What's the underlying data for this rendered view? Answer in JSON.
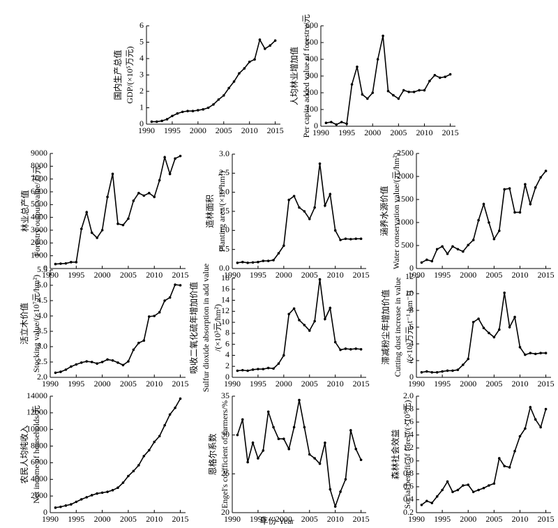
{
  "chart_data": [
    {
      "type": "line",
      "ylabel": [
        "国内生产总值",
        "GDP/(×10⁵万元)"
      ],
      "color": "#000000",
      "x": [
        1991,
        1992,
        1993,
        1994,
        1995,
        1996,
        1997,
        1998,
        1999,
        2000,
        2001,
        2002,
        2003,
        2004,
        2005,
        2006,
        2007,
        2008,
        2009,
        2010,
        2011,
        2012,
        2013,
        2014,
        2015
      ],
      "values": [
        0.15,
        0.15,
        0.2,
        0.3,
        0.5,
        0.65,
        0.75,
        0.8,
        0.8,
        0.85,
        0.9,
        1.0,
        1.2,
        1.5,
        1.75,
        2.2,
        2.6,
        3.1,
        3.4,
        3.8,
        3.95,
        5.15,
        4.6,
        4.8,
        5.1
      ],
      "xlim": [
        1990,
        2016
      ],
      "xticks": [
        1990,
        1995,
        2000,
        2005,
        2010,
        2015
      ],
      "ylim": [
        0,
        6
      ],
      "yticks": [
        0,
        1,
        2,
        3,
        4,
        5,
        6
      ]
    },
    {
      "type": "line",
      "ylabel": [
        "人均林业增加值",
        "Per capita added value of forestry/元"
      ],
      "color": "#000000",
      "x": [
        1991,
        1992,
        1993,
        1994,
        1995,
        1996,
        1997,
        1998,
        1999,
        2000,
        2001,
        2002,
        2003,
        2004,
        2005,
        2006,
        2007,
        2008,
        2009,
        2010,
        2011,
        2012,
        2013,
        2014,
        2015
      ],
      "values": [
        20,
        25,
        10,
        25,
        15,
        250,
        355,
        190,
        165,
        200,
        400,
        540,
        210,
        185,
        165,
        215,
        205,
        205,
        215,
        215,
        270,
        305,
        290,
        295,
        310
      ],
      "xlim": [
        1990,
        2016
      ],
      "xticks": [
        1990,
        1995,
        2000,
        2005,
        2010,
        2015
      ],
      "ylim": [
        0,
        600
      ],
      "yticks": [
        0,
        100,
        200,
        300,
        400,
        500,
        600
      ]
    },
    {
      "type": "line",
      "ylabel": [
        "林业总产值",
        "Forestry output value/万元"
      ],
      "color": "#000000",
      "x": [
        1991,
        1992,
        1993,
        1994,
        1995,
        1996,
        1997,
        1998,
        1999,
        2000,
        2001,
        2002,
        2003,
        2004,
        2005,
        2006,
        2007,
        2008,
        2009,
        2010,
        2011,
        2012,
        2013,
        2014,
        2015
      ],
      "values": [
        350,
        380,
        400,
        500,
        500,
        3100,
        4400,
        2800,
        2400,
        3000,
        5600,
        7400,
        3500,
        3400,
        3900,
        5300,
        5900,
        5700,
        5900,
        5600,
        6900,
        8700,
        7400,
        8600,
        8800
      ],
      "xlim": [
        1990,
        2016
      ],
      "xticks": [
        1990,
        1995,
        2000,
        2005,
        2010,
        2015
      ],
      "ylim": [
        0,
        9000
      ],
      "yticks": [
        0,
        1000,
        2000,
        3000,
        4000,
        5000,
        6000,
        7000,
        8000,
        9000
      ]
    },
    {
      "type": "line",
      "ylabel": [
        "造林面积",
        "Planting area/(×10⁴hm²)"
      ],
      "color": "#000000",
      "x": [
        1991,
        1992,
        1993,
        1994,
        1995,
        1996,
        1997,
        1998,
        1999,
        2000,
        2001,
        2002,
        2003,
        2004,
        2005,
        2006,
        2007,
        2008,
        2009,
        2010,
        2011,
        2012,
        2013,
        2014,
        2015
      ],
      "values": [
        0.15,
        0.17,
        0.15,
        0.16,
        0.17,
        0.2,
        0.2,
        0.22,
        0.4,
        0.6,
        1.8,
        1.9,
        1.6,
        1.5,
        1.3,
        1.6,
        2.75,
        1.65,
        1.95,
        1.0,
        0.75,
        0.78,
        0.77,
        0.78,
        0.78
      ],
      "xlim": [
        1990,
        2016
      ],
      "xticks": [
        1990,
        1995,
        2000,
        2005,
        2010,
        2015
      ],
      "ylim": [
        0,
        3
      ],
      "yticks": [
        {
          "value": 0,
          "label": "0.0"
        },
        0.5,
        {
          "value": 1,
          "label": "1.0"
        },
        1.5,
        {
          "value": 2,
          "label": "2.0"
        },
        2.5,
        {
          "value": 3,
          "label": "3.0"
        }
      ]
    },
    {
      "type": "line",
      "ylabel": [
        "涵养水源价值",
        "Water conservation value/(元/hm²)"
      ],
      "color": "#000000",
      "x": [
        1991,
        1992,
        1993,
        1994,
        1995,
        1996,
        1997,
        1998,
        1999,
        2000,
        2001,
        2002,
        2003,
        2004,
        2005,
        2006,
        2007,
        2008,
        2009,
        2010,
        2011,
        2012,
        2013,
        2014,
        2015
      ],
      "values": [
        130,
        190,
        160,
        420,
        480,
        320,
        480,
        420,
        370,
        510,
        620,
        1050,
        1400,
        1000,
        640,
        820,
        1720,
        1740,
        1220,
        1220,
        1830,
        1400,
        1760,
        1980,
        2120
      ],
      "xlim": [
        1990,
        2016
      ],
      "xticks": [
        1990,
        1995,
        2000,
        2005,
        2010,
        2015
      ],
      "ylim": [
        0,
        2500
      ],
      "yticks": [
        0,
        500,
        1000,
        1500,
        2000,
        2500
      ]
    },
    {
      "type": "line",
      "ylabel": [
        "活立木价值",
        "Stocking value/(×10⁷元/hm²)"
      ],
      "color": "#000000",
      "x": [
        1991,
        1992,
        1993,
        1994,
        1995,
        1996,
        1997,
        1998,
        1999,
        2000,
        2001,
        2002,
        2003,
        2004,
        2005,
        2006,
        2007,
        2008,
        2009,
        2010,
        2011,
        2012,
        2013,
        2014,
        2015
      ],
      "values": [
        2.15,
        2.18,
        2.25,
        2.35,
        2.42,
        2.48,
        2.52,
        2.5,
        2.45,
        2.5,
        2.58,
        2.55,
        2.48,
        2.4,
        2.52,
        2.9,
        3.12,
        3.2,
        3.98,
        4.0,
        4.12,
        4.5,
        4.6,
        5.02,
        5.0
      ],
      "xlim": [
        1990,
        2016
      ],
      "xticks": [
        1990,
        1995,
        2000,
        2005,
        2010,
        2015
      ],
      "ylim": [
        2,
        5.5
      ],
      "yticks": [
        {
          "value": 2,
          "label": "2.0"
        },
        2.5,
        {
          "value": 3,
          "label": "3.0"
        },
        3.5,
        {
          "value": 4,
          "label": "4.0"
        },
        4.5,
        {
          "value": 5,
          "label": "5.0"
        },
        5.5
      ]
    },
    {
      "type": "line",
      "ylabel": [
        "吸收二氧化硫年增加价值",
        "Sulfur dioxide absorption in add value",
        "/(×10³元/hm²)"
      ],
      "color": "#000000",
      "x": [
        1991,
        1992,
        1993,
        1994,
        1995,
        1996,
        1997,
        1998,
        1999,
        2000,
        2001,
        2002,
        2003,
        2004,
        2005,
        2006,
        2007,
        2008,
        2009,
        2010,
        2011,
        2012,
        2013,
        2014,
        2015
      ],
      "values": [
        1.2,
        1.3,
        1.2,
        1.4,
        1.5,
        1.5,
        1.7,
        1.6,
        2.5,
        4.0,
        11.5,
        12.5,
        10.4,
        9.5,
        8.5,
        10.2,
        17.8,
        10.6,
        12.6,
        6.4,
        5.0,
        5.2,
        5.1,
        5.2,
        5.1
      ],
      "xlim": [
        1990,
        2016
      ],
      "xticks": [
        1990,
        1995,
        2000,
        2005,
        2010,
        2015
      ],
      "ylim": [
        0,
        18
      ],
      "yticks": [
        0,
        2,
        4,
        6,
        8,
        10,
        12,
        14,
        16,
        18
      ]
    },
    {
      "type": "line",
      "ylabel": [
        "滞减粉尘年增加价值",
        "Cutting dust increase in value",
        "/(×10³万元·t⁻¹·hm⁻²)"
      ],
      "color": "#000000",
      "x": [
        1991,
        1992,
        1993,
        1994,
        1995,
        1996,
        1997,
        1998,
        1999,
        2000,
        2001,
        2002,
        2003,
        2004,
        2005,
        2006,
        2007,
        2008,
        2009,
        2010,
        2011,
        2012,
        2013,
        2014,
        2015
      ],
      "values": [
        0.6,
        0.7,
        0.6,
        0.6,
        0.7,
        0.8,
        0.8,
        0.9,
        1.5,
        2.2,
        6.6,
        7.0,
        5.9,
        5.3,
        4.8,
        5.7,
        10.1,
        6.0,
        7.2,
        3.6,
        2.7,
        2.9,
        2.8,
        2.9,
        2.9
      ],
      "xlim": [
        1990,
        2016
      ],
      "xticks": [
        1990,
        1995,
        2000,
        2005,
        2010,
        2015
      ],
      "ylim": [
        0,
        12
      ],
      "yticks": [
        0,
        2,
        4,
        6,
        8,
        10,
        12
      ]
    },
    {
      "type": "line",
      "ylabel": [
        "农民人均纯收入",
        "Net income of households/元"
      ],
      "color": "#000000",
      "x": [
        1991,
        1992,
        1993,
        1994,
        1995,
        1996,
        1997,
        1998,
        1999,
        2000,
        2001,
        2002,
        2003,
        2004,
        2005,
        2006,
        2007,
        2008,
        2009,
        2010,
        2011,
        2012,
        2013,
        2014,
        2015
      ],
      "values": [
        600,
        700,
        850,
        1000,
        1300,
        1600,
        1850,
        2100,
        2300,
        2400,
        2500,
        2700,
        3000,
        3600,
        4400,
        5000,
        5700,
        6800,
        7500,
        8500,
        9200,
        10500,
        11800,
        12600,
        13700
      ],
      "xlim": [
        1990,
        2016
      ],
      "xticks": [
        1990,
        1995,
        2000,
        2005,
        2010,
        2015
      ],
      "ylim": [
        0,
        14000
      ],
      "yticks": [
        0,
        2000,
        4000,
        6000,
        8000,
        10000,
        12000,
        14000
      ]
    },
    {
      "type": "line",
      "ylabel": [
        "恩格尔系数",
        "Engel's coefficient of farmers/%"
      ],
      "xlabel": "年份 Year",
      "color": "#000000",
      "x": [
        1991,
        1992,
        1993,
        1994,
        1995,
        1996,
        1997,
        1998,
        1999,
        2000,
        2001,
        2002,
        2003,
        2004,
        2005,
        2006,
        2007,
        2008,
        2009,
        2010,
        2011,
        2012,
        2013,
        2014,
        2015
      ],
      "values": [
        30,
        32,
        26.5,
        29,
        27,
        28,
        33,
        31,
        29.5,
        29.5,
        28.2,
        31,
        34.5,
        31,
        27.5,
        27,
        26.3,
        29,
        23,
        20.8,
        22.7,
        24.3,
        30.6,
        28.2,
        26.8
      ],
      "xlim": [
        1990,
        2016
      ],
      "xticks": [
        1990,
        1995,
        2000,
        2005,
        2010,
        2015
      ],
      "ylim": [
        20,
        35
      ],
      "yticks": [
        20,
        25,
        30,
        35
      ]
    },
    {
      "type": "line",
      "ylabel": [
        "森林社会效益",
        "Social benefit of forest/(×10⁵元)"
      ],
      "color": "#000000",
      "x": [
        1991,
        1992,
        1993,
        1994,
        1995,
        1996,
        1997,
        1998,
        1999,
        2000,
        2001,
        2002,
        2003,
        2004,
        2005,
        2006,
        2007,
        2008,
        2009,
        2010,
        2011,
        2012,
        2013,
        2014,
        2015
      ],
      "values": [
        0.32,
        0.38,
        0.35,
        0.45,
        0.55,
        0.68,
        0.52,
        0.55,
        0.62,
        0.63,
        0.52,
        0.55,
        0.58,
        0.62,
        0.65,
        1.04,
        0.92,
        0.9,
        1.15,
        1.38,
        1.5,
        1.83,
        1.64,
        1.52,
        1.8
      ],
      "xlim": [
        1990,
        2016
      ],
      "xticks": [
        1990,
        1995,
        2000,
        2005,
        2010,
        2015
      ],
      "ylim": [
        0.2,
        2
      ],
      "yticks": [
        0.2,
        0.4,
        0.6,
        0.8,
        {
          "value": 1,
          "label": "1.0"
        },
        1.2,
        1.4,
        1.6,
        1.8,
        {
          "value": 2,
          "label": "2.0"
        }
      ]
    }
  ]
}
